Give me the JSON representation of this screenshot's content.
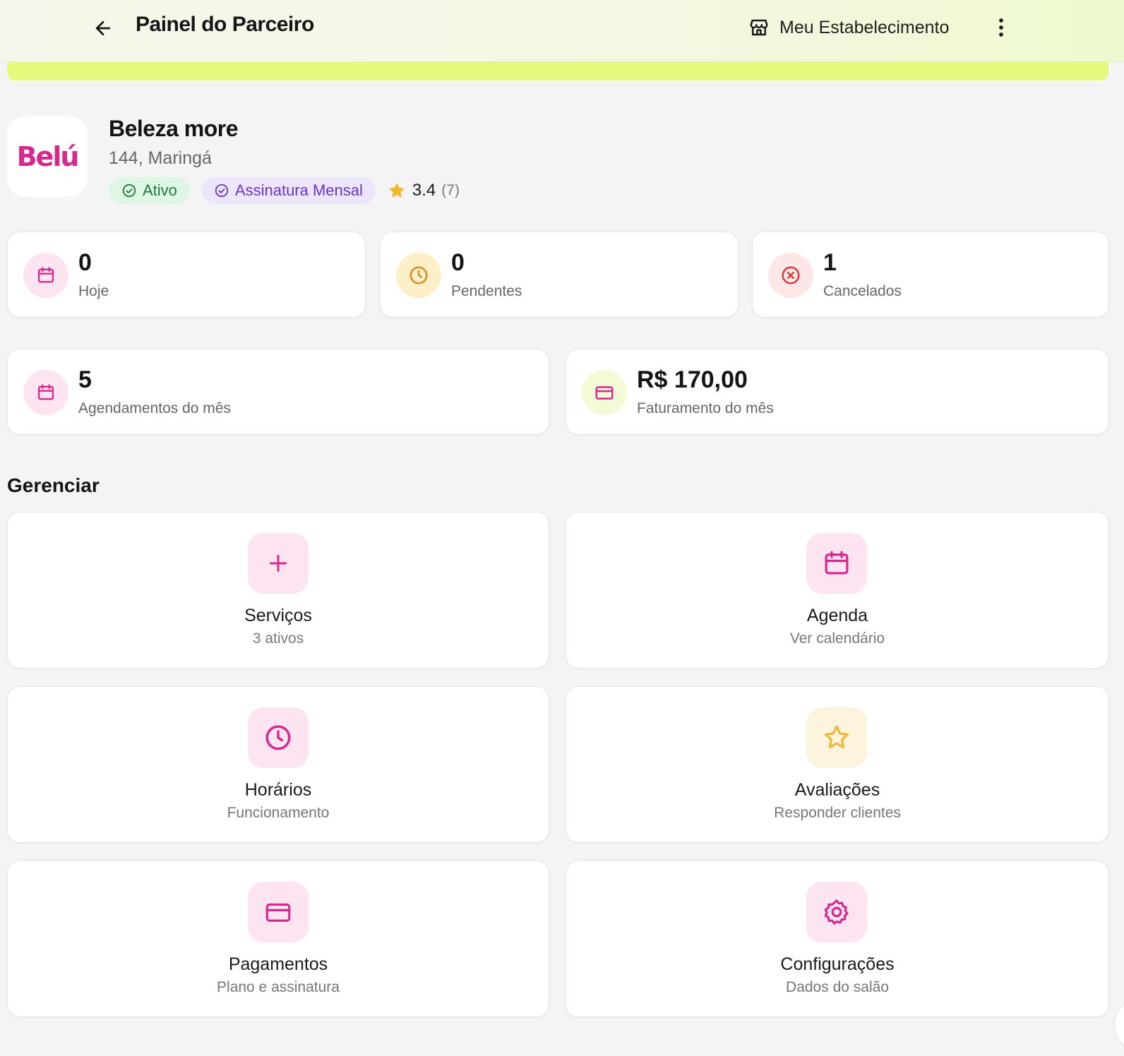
{
  "header": {
    "title": "Painel do Parceiro",
    "store_label": "Meu Estabelecimento"
  },
  "establishment": {
    "logo_text": "Belú",
    "name": "Beleza more",
    "address": "144, Maringá",
    "status_badge": "Ativo",
    "plan_badge": "Assinatura Mensal",
    "rating": "3.4",
    "rating_count": "(7)"
  },
  "stats": [
    {
      "value": "0",
      "label": "Hoje",
      "icon": "calendar-icon"
    },
    {
      "value": "0",
      "label": "Pendentes",
      "icon": "clock-icon"
    },
    {
      "value": "1",
      "label": "Cancelados",
      "icon": "x-circle-icon"
    }
  ],
  "monthly": [
    {
      "value": "5",
      "label": "Agendamentos do mês",
      "icon": "calendar-icon"
    },
    {
      "value": "R$ 170,00",
      "label": "Faturamento do mês",
      "icon": "credit-card-icon"
    }
  ],
  "manage": {
    "title": "Gerenciar",
    "tiles": [
      {
        "title": "Serviços",
        "subtitle": "3 ativos",
        "icon": "plus-icon"
      },
      {
        "title": "Agenda",
        "subtitle": "Ver calendário",
        "icon": "calendar-icon"
      },
      {
        "title": "Horários",
        "subtitle": "Funcionamento",
        "icon": "clock-icon"
      },
      {
        "title": "Avaliações",
        "subtitle": "Responder clientes",
        "icon": "star-icon"
      },
      {
        "title": "Pagamentos",
        "subtitle": "Plano e assinatura",
        "icon": "credit-card-icon"
      },
      {
        "title": "Configurações",
        "subtitle": "Dados do salão",
        "icon": "gear-icon"
      }
    ]
  },
  "colors": {
    "accent_pink": "#d7288f",
    "banner_lime": "#e3fa7c",
    "pending_orange": "#d98a1e",
    "cancel_red": "#d93a3a",
    "star_yellow": "#f2b731"
  }
}
